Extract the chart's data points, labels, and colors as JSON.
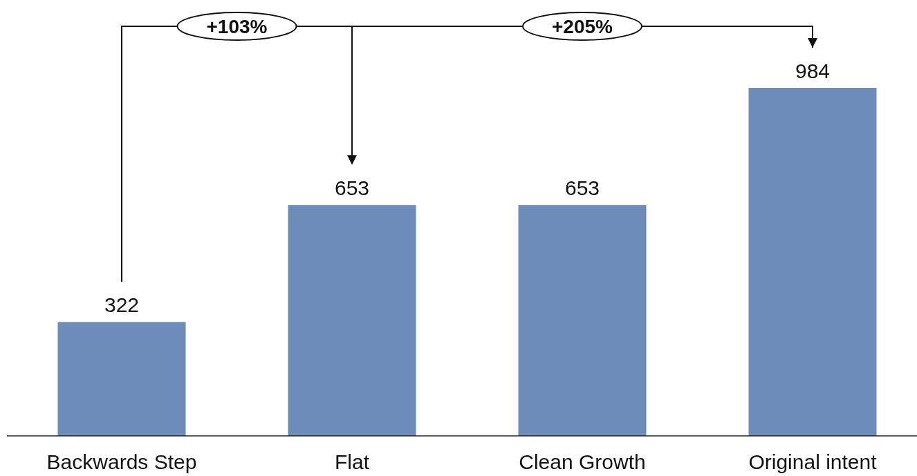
{
  "chart_data": {
    "type": "bar",
    "categories": [
      "Backwards Step",
      "Flat",
      "Clean Growth",
      "Original intent"
    ],
    "values": [
      322,
      653,
      653,
      984
    ],
    "color": "#6e8cb9",
    "data_labels": true,
    "annotations": [
      "+103%",
      "+205%"
    ]
  }
}
